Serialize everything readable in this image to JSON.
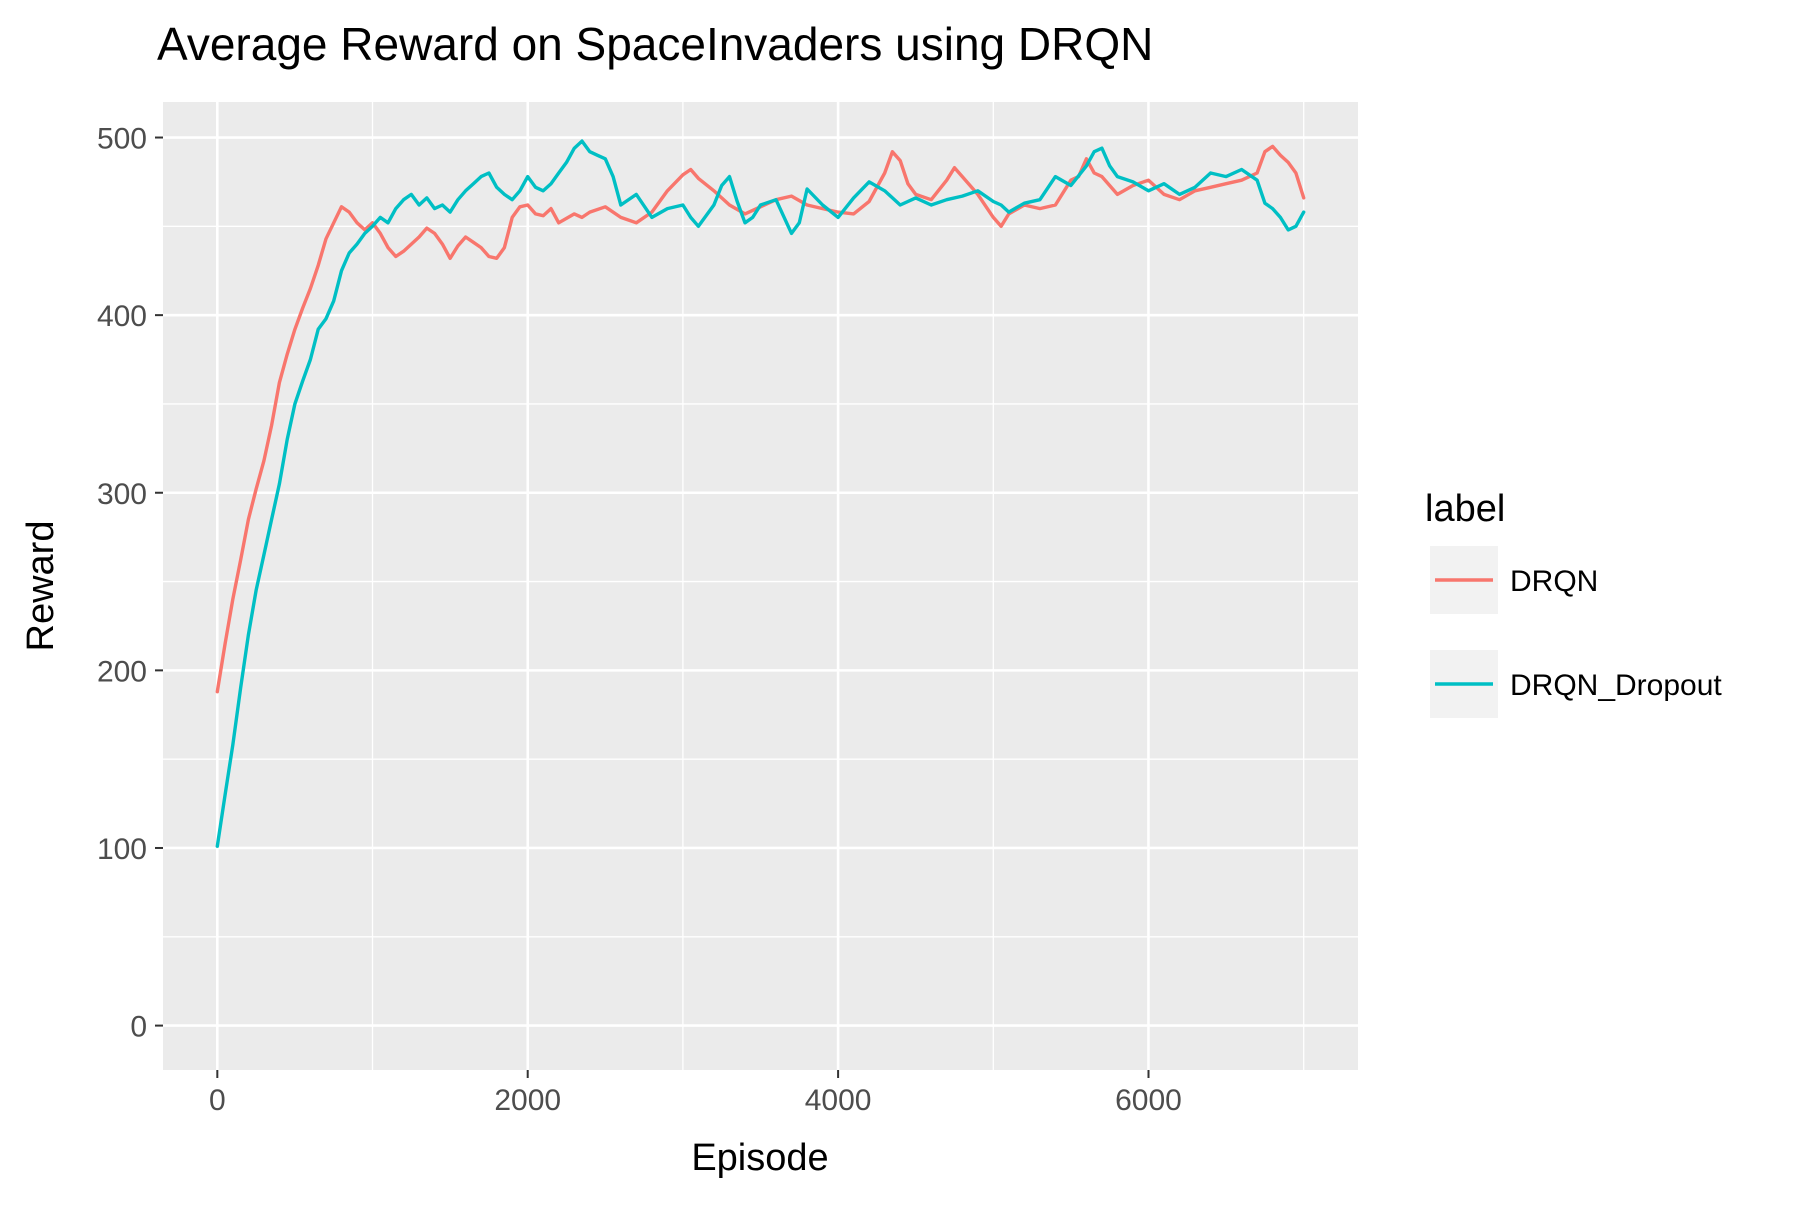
{
  "chart_data": {
    "type": "line",
    "title": "Average Reward on SpaceInvaders using DRQN",
    "xlabel": "Episode",
    "ylabel": "Reward",
    "xlim": [
      -350,
      7350
    ],
    "ylim": [
      -25,
      520
    ],
    "x_ticks": [
      0,
      2000,
      4000,
      6000
    ],
    "x_tick_labels": [
      "0",
      "2000",
      "4000",
      "6000"
    ],
    "y_ticks": [
      0,
      100,
      200,
      300,
      400,
      500
    ],
    "y_tick_labels": [
      "0",
      "100",
      "200",
      "300",
      "400",
      "500"
    ],
    "grid": true,
    "legend": {
      "title": "label",
      "position": "right"
    },
    "series": [
      {
        "name": "DRQN",
        "color": "#F8766D",
        "points": [
          [
            0,
            188
          ],
          [
            50,
            215
          ],
          [
            100,
            240
          ],
          [
            150,
            262
          ],
          [
            200,
            285
          ],
          [
            250,
            302
          ],
          [
            300,
            318
          ],
          [
            350,
            338
          ],
          [
            400,
            362
          ],
          [
            450,
            378
          ],
          [
            500,
            392
          ],
          [
            550,
            404
          ],
          [
            600,
            415
          ],
          [
            650,
            428
          ],
          [
            700,
            443
          ],
          [
            750,
            452
          ],
          [
            800,
            461
          ],
          [
            850,
            458
          ],
          [
            900,
            452
          ],
          [
            950,
            448
          ],
          [
            1000,
            452
          ],
          [
            1050,
            446
          ],
          [
            1100,
            438
          ],
          [
            1150,
            433
          ],
          [
            1200,
            436
          ],
          [
            1300,
            444
          ],
          [
            1350,
            449
          ],
          [
            1400,
            446
          ],
          [
            1450,
            440
          ],
          [
            1500,
            432
          ],
          [
            1550,
            439
          ],
          [
            1600,
            444
          ],
          [
            1650,
            441
          ],
          [
            1700,
            438
          ],
          [
            1750,
            433
          ],
          [
            1800,
            432
          ],
          [
            1850,
            438
          ],
          [
            1900,
            455
          ],
          [
            1950,
            461
          ],
          [
            2000,
            462
          ],
          [
            2050,
            457
          ],
          [
            2100,
            456
          ],
          [
            2150,
            460
          ],
          [
            2200,
            452
          ],
          [
            2300,
            457
          ],
          [
            2350,
            455
          ],
          [
            2400,
            458
          ],
          [
            2500,
            461
          ],
          [
            2600,
            455
          ],
          [
            2700,
            452
          ],
          [
            2800,
            458
          ],
          [
            2900,
            470
          ],
          [
            3000,
            479
          ],
          [
            3050,
            482
          ],
          [
            3100,
            477
          ],
          [
            3200,
            470
          ],
          [
            3300,
            462
          ],
          [
            3400,
            457
          ],
          [
            3500,
            461
          ],
          [
            3600,
            465
          ],
          [
            3700,
            467
          ],
          [
            3800,
            462
          ],
          [
            3900,
            460
          ],
          [
            4000,
            458
          ],
          [
            4100,
            457
          ],
          [
            4200,
            464
          ],
          [
            4300,
            480
          ],
          [
            4350,
            492
          ],
          [
            4400,
            487
          ],
          [
            4450,
            474
          ],
          [
            4500,
            468
          ],
          [
            4600,
            465
          ],
          [
            4700,
            476
          ],
          [
            4750,
            483
          ],
          [
            4800,
            478
          ],
          [
            4900,
            468
          ],
          [
            5000,
            455
          ],
          [
            5050,
            450
          ],
          [
            5100,
            457
          ],
          [
            5200,
            462
          ],
          [
            5300,
            460
          ],
          [
            5400,
            462
          ],
          [
            5500,
            476
          ],
          [
            5550,
            478
          ],
          [
            5600,
            488
          ],
          [
            5650,
            480
          ],
          [
            5700,
            478
          ],
          [
            5800,
            468
          ],
          [
            5900,
            473
          ],
          [
            6000,
            476
          ],
          [
            6100,
            468
          ],
          [
            6200,
            465
          ],
          [
            6300,
            470
          ],
          [
            6400,
            472
          ],
          [
            6500,
            474
          ],
          [
            6600,
            476
          ],
          [
            6700,
            480
          ],
          [
            6750,
            492
          ],
          [
            6800,
            495
          ],
          [
            6850,
            490
          ],
          [
            6900,
            486
          ],
          [
            6950,
            480
          ],
          [
            7000,
            466
          ]
        ]
      },
      {
        "name": "DRQN_Dropout",
        "color": "#00BFC4",
        "points": [
          [
            0,
            101
          ],
          [
            50,
            130
          ],
          [
            100,
            158
          ],
          [
            150,
            190
          ],
          [
            200,
            220
          ],
          [
            250,
            245
          ],
          [
            300,
            265
          ],
          [
            350,
            285
          ],
          [
            400,
            305
          ],
          [
            450,
            330
          ],
          [
            500,
            350
          ],
          [
            550,
            363
          ],
          [
            600,
            375
          ],
          [
            650,
            392
          ],
          [
            700,
            398
          ],
          [
            750,
            408
          ],
          [
            800,
            425
          ],
          [
            850,
            435
          ],
          [
            900,
            440
          ],
          [
            950,
            446
          ],
          [
            1000,
            450
          ],
          [
            1050,
            455
          ],
          [
            1100,
            452
          ],
          [
            1150,
            460
          ],
          [
            1200,
            465
          ],
          [
            1250,
            468
          ],
          [
            1300,
            462
          ],
          [
            1350,
            466
          ],
          [
            1400,
            460
          ],
          [
            1450,
            462
          ],
          [
            1500,
            458
          ],
          [
            1550,
            465
          ],
          [
            1600,
            470
          ],
          [
            1650,
            474
          ],
          [
            1700,
            478
          ],
          [
            1750,
            480
          ],
          [
            1800,
            472
          ],
          [
            1850,
            468
          ],
          [
            1900,
            465
          ],
          [
            1950,
            470
          ],
          [
            2000,
            478
          ],
          [
            2050,
            472
          ],
          [
            2100,
            470
          ],
          [
            2150,
            474
          ],
          [
            2200,
            480
          ],
          [
            2250,
            486
          ],
          [
            2300,
            494
          ],
          [
            2350,
            498
          ],
          [
            2400,
            492
          ],
          [
            2450,
            490
          ],
          [
            2500,
            488
          ],
          [
            2550,
            478
          ],
          [
            2600,
            462
          ],
          [
            2700,
            468
          ],
          [
            2800,
            455
          ],
          [
            2900,
            460
          ],
          [
            3000,
            462
          ],
          [
            3050,
            455
          ],
          [
            3100,
            450
          ],
          [
            3200,
            462
          ],
          [
            3250,
            473
          ],
          [
            3300,
            478
          ],
          [
            3350,
            464
          ],
          [
            3400,
            452
          ],
          [
            3450,
            455
          ],
          [
            3500,
            462
          ],
          [
            3600,
            465
          ],
          [
            3700,
            446
          ],
          [
            3750,
            452
          ],
          [
            3800,
            471
          ],
          [
            3900,
            462
          ],
          [
            4000,
            455
          ],
          [
            4100,
            466
          ],
          [
            4200,
            475
          ],
          [
            4300,
            470
          ],
          [
            4400,
            462
          ],
          [
            4500,
            466
          ],
          [
            4600,
            462
          ],
          [
            4700,
            465
          ],
          [
            4800,
            467
          ],
          [
            4900,
            470
          ],
          [
            5000,
            464
          ],
          [
            5050,
            462
          ],
          [
            5100,
            458
          ],
          [
            5200,
            463
          ],
          [
            5300,
            465
          ],
          [
            5400,
            478
          ],
          [
            5500,
            473
          ],
          [
            5600,
            484
          ],
          [
            5650,
            492
          ],
          [
            5700,
            494
          ],
          [
            5750,
            484
          ],
          [
            5800,
            478
          ],
          [
            5900,
            475
          ],
          [
            6000,
            470
          ],
          [
            6100,
            474
          ],
          [
            6200,
            468
          ],
          [
            6300,
            472
          ],
          [
            6400,
            480
          ],
          [
            6500,
            478
          ],
          [
            6600,
            482
          ],
          [
            6700,
            476
          ],
          [
            6750,
            463
          ],
          [
            6800,
            460
          ],
          [
            6850,
            455
          ],
          [
            6900,
            448
          ],
          [
            6950,
            450
          ],
          [
            7000,
            458
          ]
        ]
      }
    ]
  }
}
